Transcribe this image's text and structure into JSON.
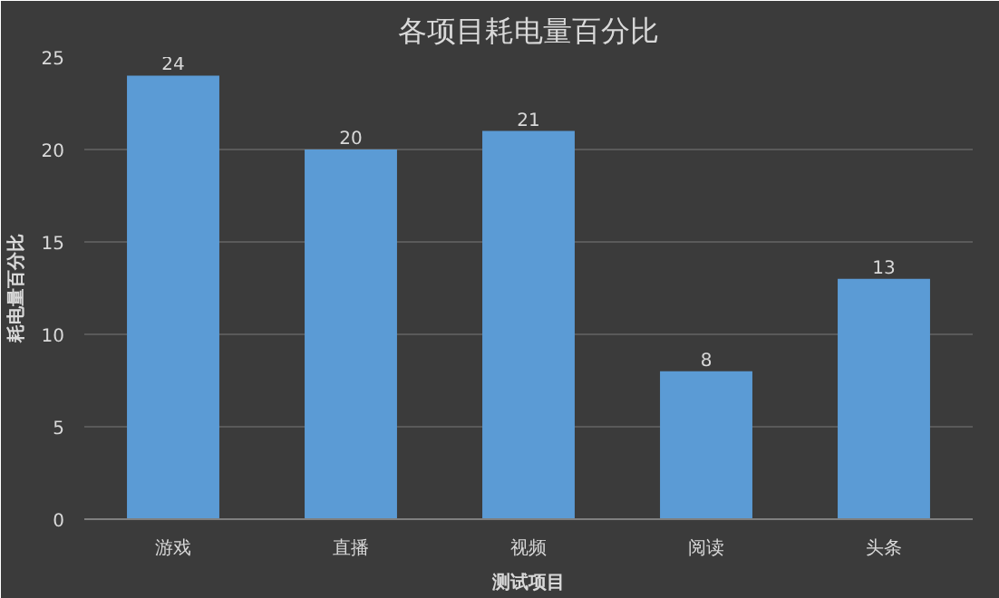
{
  "chart_data": {
    "type": "bar",
    "title": "各项目耗电量百分比",
    "xlabel": "测试项目",
    "ylabel": "耗电量百分比",
    "categories": [
      "游戏",
      "直播",
      "视频",
      "阅读",
      "头条"
    ],
    "values": [
      24,
      20,
      21,
      8,
      13
    ],
    "color": "#5b9bd5",
    "ylim": [
      0,
      25
    ],
    "yticks": [
      0,
      5,
      10,
      15,
      20,
      25
    ],
    "grid": "y",
    "data_labels": true
  }
}
